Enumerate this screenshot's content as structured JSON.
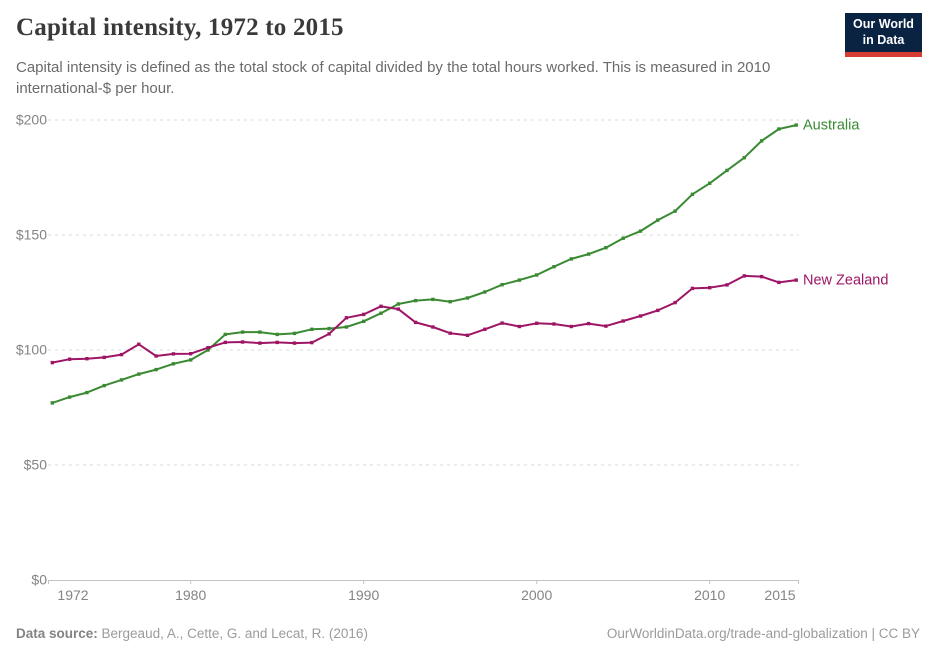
{
  "header": {
    "title": "Capital intensity, 1972 to 2015",
    "subtitle": "Capital intensity is defined as the total stock of capital divided by the total hours worked. This is measured in 2010 international-$ per hour."
  },
  "logo": {
    "line1": "Our World",
    "line2": "in Data",
    "bg_color": "#0a2342",
    "bar_color": "#d73c34"
  },
  "footer": {
    "source_label": "Data source:",
    "source_text": " Bergeaud, A., Cette, G. and Lecat, R. (2016)",
    "url_text": "OurWorldinData.org/trade-and-globalization | CC BY"
  },
  "chart_data": {
    "type": "line",
    "title": "Capital intensity, 1972 to 2015",
    "xlabel": "",
    "ylabel": "2010 international-$ per hour",
    "ylim": [
      0,
      200
    ],
    "grid": "horizontal-dashed",
    "legend_position": "end-of-line-labels",
    "x": [
      1972,
      1973,
      1974,
      1975,
      1976,
      1977,
      1978,
      1979,
      1980,
      1981,
      1982,
      1983,
      1984,
      1985,
      1986,
      1987,
      1988,
      1989,
      1990,
      1991,
      1992,
      1993,
      1994,
      1995,
      1996,
      1997,
      1998,
      1999,
      2000,
      2001,
      2002,
      2003,
      2004,
      2005,
      2006,
      2007,
      2008,
      2009,
      2010,
      2011,
      2012,
      2013,
      2014,
      2015
    ],
    "series": [
      {
        "name": "Australia",
        "color": "#3a8a33",
        "values": [
          77,
          79.5,
          81.5,
          84.5,
          87,
          89.5,
          91.5,
          94,
          95.7,
          100,
          106.8,
          107.8,
          107.8,
          106.8,
          107.2,
          109,
          109.3,
          110,
          112.5,
          116,
          120,
          121.5,
          122,
          121,
          122.6,
          125.2,
          128.4,
          130.4,
          132.6,
          136.2,
          139.6,
          141.7,
          144.5,
          148.6,
          151.7,
          156.5,
          160.4,
          167.7,
          172.5,
          178.1,
          183.6,
          190.9,
          196.1,
          197.8
        ]
      },
      {
        "name": "New Zealand",
        "color": "#9e1566",
        "values": [
          94.5,
          96,
          96.2,
          96.8,
          98,
          102.5,
          97.4,
          98.3,
          98.4,
          101,
          103.3,
          103.5,
          103,
          103.3,
          103,
          103.2,
          107,
          114,
          115.5,
          119,
          117.8,
          112,
          110,
          107.3,
          106.4,
          109,
          111.7,
          110.2,
          111.6,
          111.3,
          110.2,
          111.5,
          110.4,
          112.6,
          114.8,
          117.2,
          120.6,
          126.8,
          127.1,
          128.3,
          132.2,
          131.9,
          129.4,
          130.4
        ]
      }
    ],
    "yticks": [
      {
        "value": 0,
        "label": "$0"
      },
      {
        "value": 50,
        "label": "$50"
      },
      {
        "value": 100,
        "label": "$100"
      },
      {
        "value": 150,
        "label": "$150"
      },
      {
        "value": 200,
        "label": "$200"
      }
    ],
    "xticks": [
      {
        "value": 1972,
        "label": "1972"
      },
      {
        "value": 1980,
        "label": "1980"
      },
      {
        "value": 1990,
        "label": "1990"
      },
      {
        "value": 2000,
        "label": "2000"
      },
      {
        "value": 2010,
        "label": "2010"
      },
      {
        "value": 2015,
        "label": "2015"
      }
    ]
  }
}
